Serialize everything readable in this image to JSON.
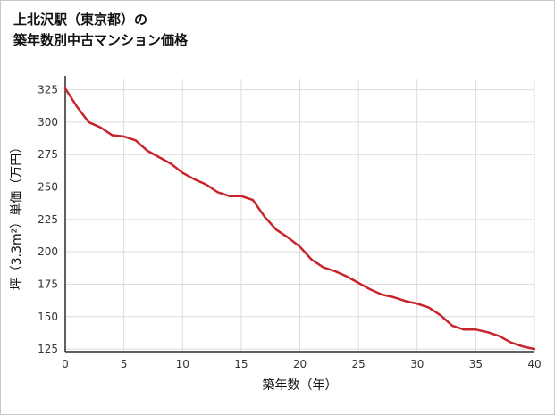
{
  "title": {
    "line1": "上北沢駅（東京都）の",
    "line2": "築年数別中古マンション価格"
  },
  "colors": {
    "line": "#c9242b",
    "grid": "#dcdcdc",
    "axis": "#2b2b2b",
    "text": "#333333"
  },
  "chart_data": {
    "type": "line",
    "title": "上北沢駅（東京都）の築年数別中古マンション価格",
    "xlabel": "築年数（年）",
    "ylabel": "坪（3.3m²）単価（万円）",
    "xlim": [
      0,
      40
    ],
    "ylim": [
      123,
      333
    ],
    "xticks": [
      0,
      5,
      10,
      15,
      20,
      25,
      30,
      35,
      40
    ],
    "yticks": [
      125,
      150,
      175,
      200,
      225,
      250,
      275,
      300,
      325
    ],
    "grid": true,
    "legend": "none",
    "x": [
      0,
      1,
      2,
      3,
      4,
      5,
      6,
      7,
      8,
      9,
      10,
      11,
      12,
      13,
      14,
      15,
      16,
      17,
      18,
      19,
      20,
      21,
      22,
      23,
      24,
      25,
      26,
      27,
      28,
      29,
      30,
      31,
      32,
      33,
      34,
      35,
      36,
      37,
      38,
      39,
      40
    ],
    "values": [
      326,
      312,
      300,
      296,
      290,
      289,
      286,
      278,
      273,
      268,
      261,
      256,
      252,
      246,
      243,
      243,
      240,
      227,
      217,
      211,
      204,
      194,
      188,
      185,
      181,
      176,
      171,
      167,
      165,
      162,
      160,
      157,
      151,
      143,
      140,
      140,
      138,
      135,
      130,
      127,
      125
    ]
  }
}
